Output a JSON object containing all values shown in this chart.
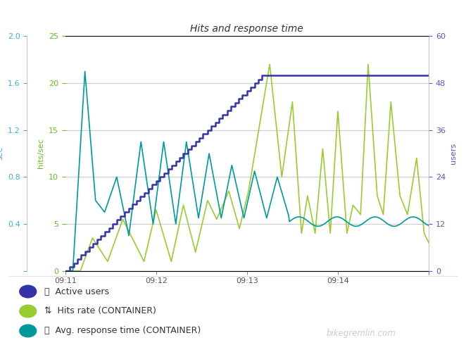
{
  "title": "Hits and response time",
  "ylabel_left_sec": "sec",
  "ylabel_left_hits": "hits/sec",
  "ylabel_right": "users",
  "background_color": "#ffffff",
  "plot_bg_color": "#ffffff",
  "grid_color": "#cccccc",
  "colors": {
    "active_users": "#3333aa",
    "hits_rate": "#99cc33",
    "response_time": "#009999"
  },
  "x_tick_positions": [
    0,
    60,
    120,
    180,
    240
  ],
  "x_tick_labels": [
    "09:11",
    "09:12",
    "09:13",
    "09:14",
    ""
  ],
  "left_sec_ticks": [
    0,
    0.4,
    0.8,
    1.2,
    1.6,
    2.0
  ],
  "left_hits_ticks": [
    0,
    5,
    10,
    15,
    20,
    25
  ],
  "right_ticks": [
    0,
    12,
    24,
    36,
    48,
    60
  ],
  "ylim_sec": [
    0,
    2.0
  ],
  "ylim_hits": [
    0,
    25
  ],
  "ylim_users": [
    0,
    60
  ],
  "watermark": "bikegremlin.com",
  "legend_items": [
    {
      "label": "👥  Active users",
      "color": "#3333aa"
    },
    {
      "label": "⇅  Hits rate (CONTAINER)",
      "color": "#99cc33"
    },
    {
      "label": "⏰  Avg. response time (CONTAINER)",
      "color": "#009999"
    }
  ]
}
